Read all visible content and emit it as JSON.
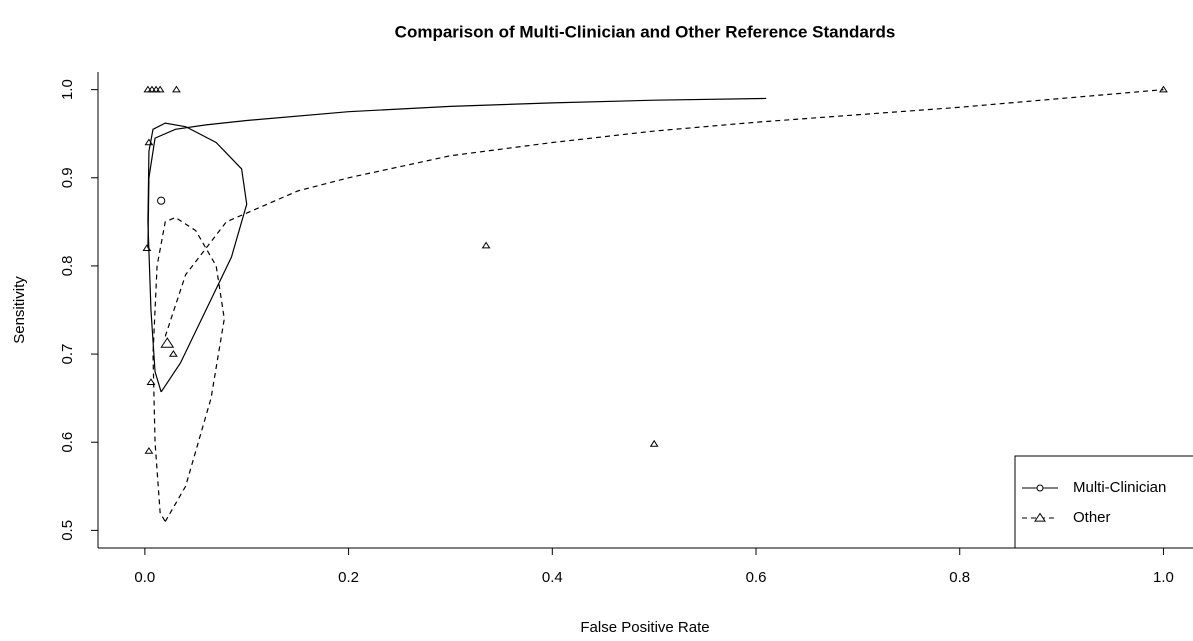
{
  "chart_data": {
    "type": "scatter",
    "title": "Comparison of Multi-Clinician and Other Reference Standards",
    "x_label": "False Positive Rate",
    "y_label": "Sensitivity",
    "xlim": [
      -0.046,
      1.029
    ],
    "ylim": [
      0.48,
      1.02
    ],
    "xticks": [
      {
        "value": 0,
        "label": "0.0"
      },
      0.2,
      0.4,
      0.6,
      0.8,
      {
        "value": 1,
        "label": "1.0"
      }
    ],
    "yticks": [
      0.5,
      0.6,
      0.7,
      0.8,
      0.9,
      {
        "value": 1,
        "label": "1.0"
      }
    ],
    "legend": "bottom-right",
    "series": [
      {
        "name": "Multi-Clinician",
        "color": "#000000",
        "marker": "circle",
        "dash": "solid",
        "x": [],
        "values": [],
        "summary": {
          "x": 0.016,
          "y": 0.874
        },
        "curve": {
          "x": [
            0.003,
            0.004,
            0.01,
            0.03,
            0.06,
            0.1,
            0.2,
            0.3,
            0.4,
            0.5,
            0.61
          ],
          "values": [
            0.82,
            0.9,
            0.945,
            0.955,
            0.96,
            0.965,
            0.975,
            0.981,
            0.985,
            0.988,
            0.99
          ]
        },
        "ellipse": {
          "x": [
            0.016,
            0.035,
            0.06,
            0.085,
            0.1,
            0.095,
            0.07,
            0.04,
            0.02,
            0.008,
            0.004,
            0.003,
            0.006,
            0.01,
            0.016
          ],
          "values": [
            0.657,
            0.69,
            0.75,
            0.81,
            0.87,
            0.91,
            0.94,
            0.958,
            0.962,
            0.955,
            0.93,
            0.85,
            0.75,
            0.68,
            0.657
          ]
        }
      },
      {
        "name": "Other",
        "color": "#000000",
        "marker": "triangle",
        "dash": "dashed",
        "x": [
          0.003,
          0.007,
          0.011,
          0.015,
          0.031,
          0.004,
          0.002,
          0.006,
          0.004,
          0.028,
          0.335,
          0.5,
          1.0
        ],
        "values": [
          1.0,
          1.0,
          1.0,
          1.0,
          1.0,
          0.94,
          0.82,
          0.668,
          0.59,
          0.7,
          0.823,
          0.598,
          1.0
        ],
        "summary": {
          "x": 0.022,
          "y": 0.712
        },
        "curve": {
          "x": [
            0.02,
            0.04,
            0.08,
            0.15,
            0.2,
            0.3,
            0.4,
            0.5,
            0.6,
            0.8,
            1.0
          ],
          "values": [
            0.72,
            0.79,
            0.85,
            0.885,
            0.9,
            0.925,
            0.94,
            0.953,
            0.963,
            0.98,
            1.0
          ]
        },
        "ellipse": {
          "x": [
            0.02,
            0.04,
            0.065,
            0.078,
            0.07,
            0.05,
            0.03,
            0.02,
            0.012,
            0.008,
            0.01,
            0.015,
            0.02
          ],
          "values": [
            0.51,
            0.55,
            0.65,
            0.74,
            0.8,
            0.84,
            0.855,
            0.85,
            0.8,
            0.7,
            0.6,
            0.52,
            0.51
          ]
        }
      }
    ]
  }
}
